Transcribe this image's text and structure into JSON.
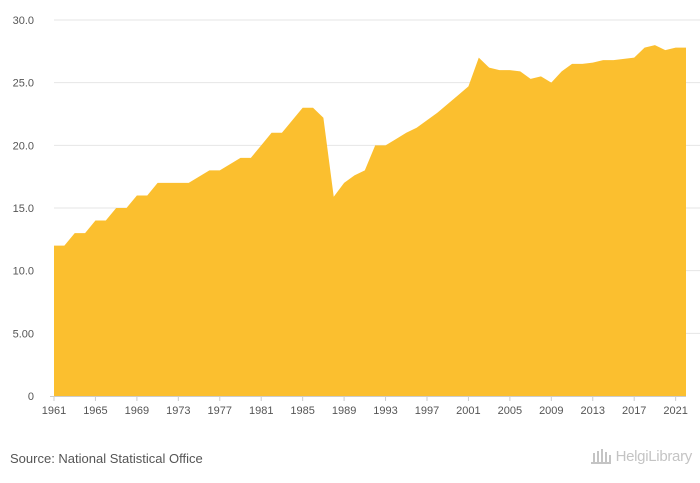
{
  "source_text": "Source: National Statistical Office",
  "logo_text": "HelgiLibrary",
  "colors": {
    "area": "#fbbf2f",
    "grid": "#e6e6e6",
    "text": "#555555",
    "logo": "#c4c4c4"
  },
  "chart_data": {
    "type": "area",
    "title": "",
    "xlabel": "",
    "ylabel": "",
    "ylim": [
      0,
      30
    ],
    "xlim": [
      1961,
      2022
    ],
    "grid": "horizontal",
    "y_ticks": [
      {
        "value": 0,
        "label": "0"
      },
      {
        "value": 5,
        "label": "5.00"
      },
      {
        "value": 10,
        "label": "10.0"
      },
      {
        "value": 15,
        "label": "15.0"
      },
      {
        "value": 20,
        "label": "20.0"
      },
      {
        "value": 25,
        "label": "25.0"
      },
      {
        "value": 30,
        "label": "30.0"
      }
    ],
    "x_ticks": [
      "1961",
      "1965",
      "1969",
      "1973",
      "1977",
      "1981",
      "1985",
      "1989",
      "1993",
      "1997",
      "2001",
      "2005",
      "2009",
      "2013",
      "2017",
      "2021"
    ],
    "x": [
      1961,
      1962,
      1963,
      1964,
      1965,
      1966,
      1967,
      1968,
      1969,
      1970,
      1971,
      1972,
      1973,
      1974,
      1975,
      1976,
      1977,
      1978,
      1979,
      1980,
      1981,
      1982,
      1983,
      1984,
      1985,
      1986,
      1987,
      1988,
      1989,
      1990,
      1991,
      1992,
      1993,
      1994,
      1995,
      1996,
      1997,
      1998,
      1999,
      2000,
      2001,
      2002,
      2003,
      2004,
      2005,
      2006,
      2007,
      2008,
      2009,
      2010,
      2011,
      2012,
      2013,
      2014,
      2015,
      2016,
      2017,
      2018,
      2019,
      2020,
      2021,
      2022
    ],
    "values": [
      12,
      12,
      13,
      13,
      14,
      14,
      15,
      15,
      16,
      16,
      17,
      17,
      17,
      17,
      17.5,
      18,
      18,
      18.5,
      19,
      19,
      20,
      21,
      21,
      22,
      23,
      23,
      22.2,
      15.9,
      17,
      17.6,
      18,
      20,
      20,
      20.5,
      21,
      21.4,
      22,
      22.6,
      23.3,
      24,
      24.7,
      27,
      26.2,
      26,
      26,
      25.9,
      25.3,
      25.5,
      25,
      25.9,
      26.5,
      26.5,
      26.6,
      26.8,
      26.8,
      26.9,
      27,
      27.8,
      28,
      27.6,
      27.8,
      27.8
    ]
  }
}
